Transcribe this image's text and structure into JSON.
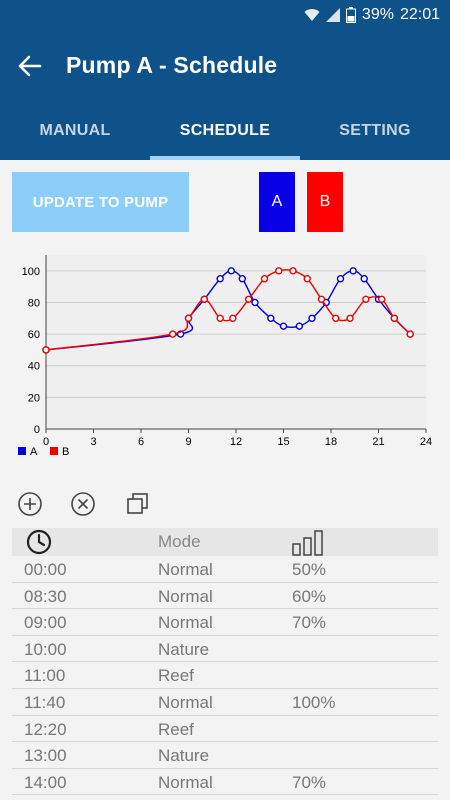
{
  "status_bar": {
    "battery": "39%",
    "time": "22:01",
    "icons": [
      "wifi-icon",
      "signal-icon",
      "battery-icon"
    ]
  },
  "header": {
    "title": "Pump A - Schedule",
    "back_icon": "arrow-left-icon"
  },
  "tabs": [
    {
      "label": "MANUAL",
      "active": false
    },
    {
      "label": "SCHEDULE",
      "active": true
    },
    {
      "label": "SETTING",
      "active": false
    }
  ],
  "actions": {
    "update_label": "UPDATE TO PUMP",
    "pump_a_label": "A",
    "pump_b_label": "B"
  },
  "chart_data": {
    "type": "line",
    "xlim": [
      0,
      24
    ],
    "ylim": [
      0,
      110
    ],
    "x_ticks": [
      0,
      3,
      6,
      9,
      12,
      15,
      18,
      21,
      24
    ],
    "y_ticks": [
      0,
      20,
      40,
      60,
      80,
      100
    ],
    "legend_position": "bottom-left",
    "series": [
      {
        "name": "A",
        "color": "#0000dd",
        "points": [
          [
            0,
            50
          ],
          [
            8.5,
            60
          ],
          [
            9,
            70
          ],
          [
            10,
            82
          ],
          [
            11,
            95
          ],
          [
            11.7,
            100
          ],
          [
            12.4,
            95
          ],
          [
            13.2,
            80
          ],
          [
            14.2,
            70
          ],
          [
            15,
            65
          ],
          [
            16,
            65
          ],
          [
            16.8,
            70
          ],
          [
            17.7,
            80
          ],
          [
            18.6,
            95
          ],
          [
            19.4,
            100
          ],
          [
            20.1,
            95
          ],
          [
            21,
            82
          ],
          [
            22,
            70
          ],
          [
            23,
            60
          ]
        ]
      },
      {
        "name": "B",
        "color": "#ee0000",
        "points": [
          [
            0,
            50
          ],
          [
            8,
            60
          ],
          [
            9,
            70
          ],
          [
            10,
            82
          ],
          [
            11,
            70
          ],
          [
            11.8,
            70
          ],
          [
            12.8,
            82
          ],
          [
            13.8,
            95
          ],
          [
            14.7,
            100
          ],
          [
            15.6,
            100
          ],
          [
            16.5,
            95
          ],
          [
            17.4,
            82
          ],
          [
            18.3,
            70
          ],
          [
            19.2,
            70
          ],
          [
            20.2,
            82
          ],
          [
            21.2,
            82
          ],
          [
            22,
            70
          ],
          [
            23,
            60
          ]
        ]
      }
    ]
  },
  "toolbar": {
    "icons": [
      "add-circle-icon",
      "remove-circle-icon",
      "copy-icon"
    ]
  },
  "table": {
    "header_mode": "Mode",
    "header_time_icon": "clock-icon",
    "header_level_icon": "signal-bars-icon",
    "rows": [
      {
        "time": "00:00",
        "mode": "Normal",
        "value": "50%"
      },
      {
        "time": "08:30",
        "mode": "Normal",
        "value": "60%"
      },
      {
        "time": "09:00",
        "mode": "Normal",
        "value": "70%"
      },
      {
        "time": "10:00",
        "mode": "Nature",
        "value": ""
      },
      {
        "time": "11:00",
        "mode": "Reef",
        "value": ""
      },
      {
        "time": "11:40",
        "mode": "Normal",
        "value": "100%"
      },
      {
        "time": "12:20",
        "mode": "Reef",
        "value": ""
      },
      {
        "time": "13:00",
        "mode": "Nature",
        "value": ""
      },
      {
        "time": "14:00",
        "mode": "Normal",
        "value": "70%"
      }
    ]
  }
}
